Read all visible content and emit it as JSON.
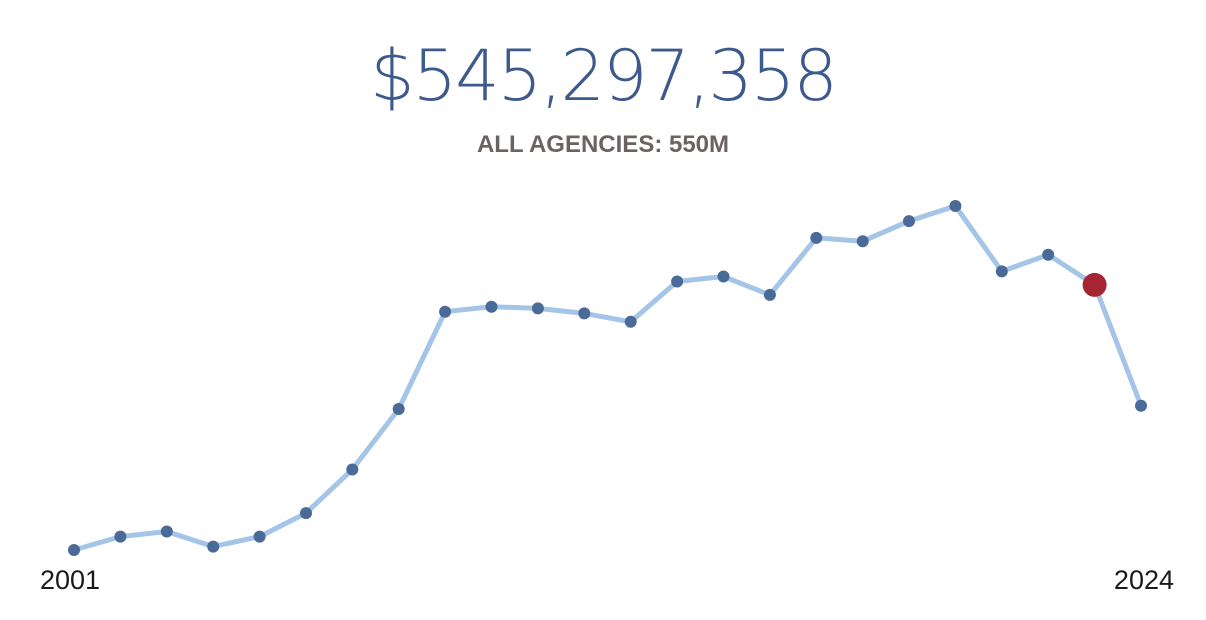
{
  "headline": {
    "value": "$545,297,358"
  },
  "subhead": {
    "text": "ALL AGENCIES: 550M"
  },
  "chart_data": {
    "type": "line",
    "x": [
      2001,
      2002,
      2003,
      2004,
      2005,
      2006,
      2007,
      2008,
      2009,
      2010,
      2011,
      2012,
      2013,
      2014,
      2015,
      2016,
      2017,
      2018,
      2019,
      2020,
      2021,
      2022,
      2023,
      2024
    ],
    "series": [
      {
        "values": [
          0,
          4,
          5.5,
          1,
          4,
          11,
          24,
          42,
          71,
          72.5,
          72,
          70.5,
          68,
          80,
          81.5,
          76,
          93,
          92,
          98,
          102.5,
          83,
          88,
          79,
          43
        ]
      }
    ],
    "highlight_index": 22,
    "x_tick_labels": [
      "2001",
      "2024"
    ],
    "grid": false,
    "legend": "none",
    "colors": {
      "line": "#a4c4e8",
      "point": "#4a6a97",
      "highlight": "#a52532",
      "headline": "#3d5a8c",
      "subhead": "#6b6361"
    }
  }
}
